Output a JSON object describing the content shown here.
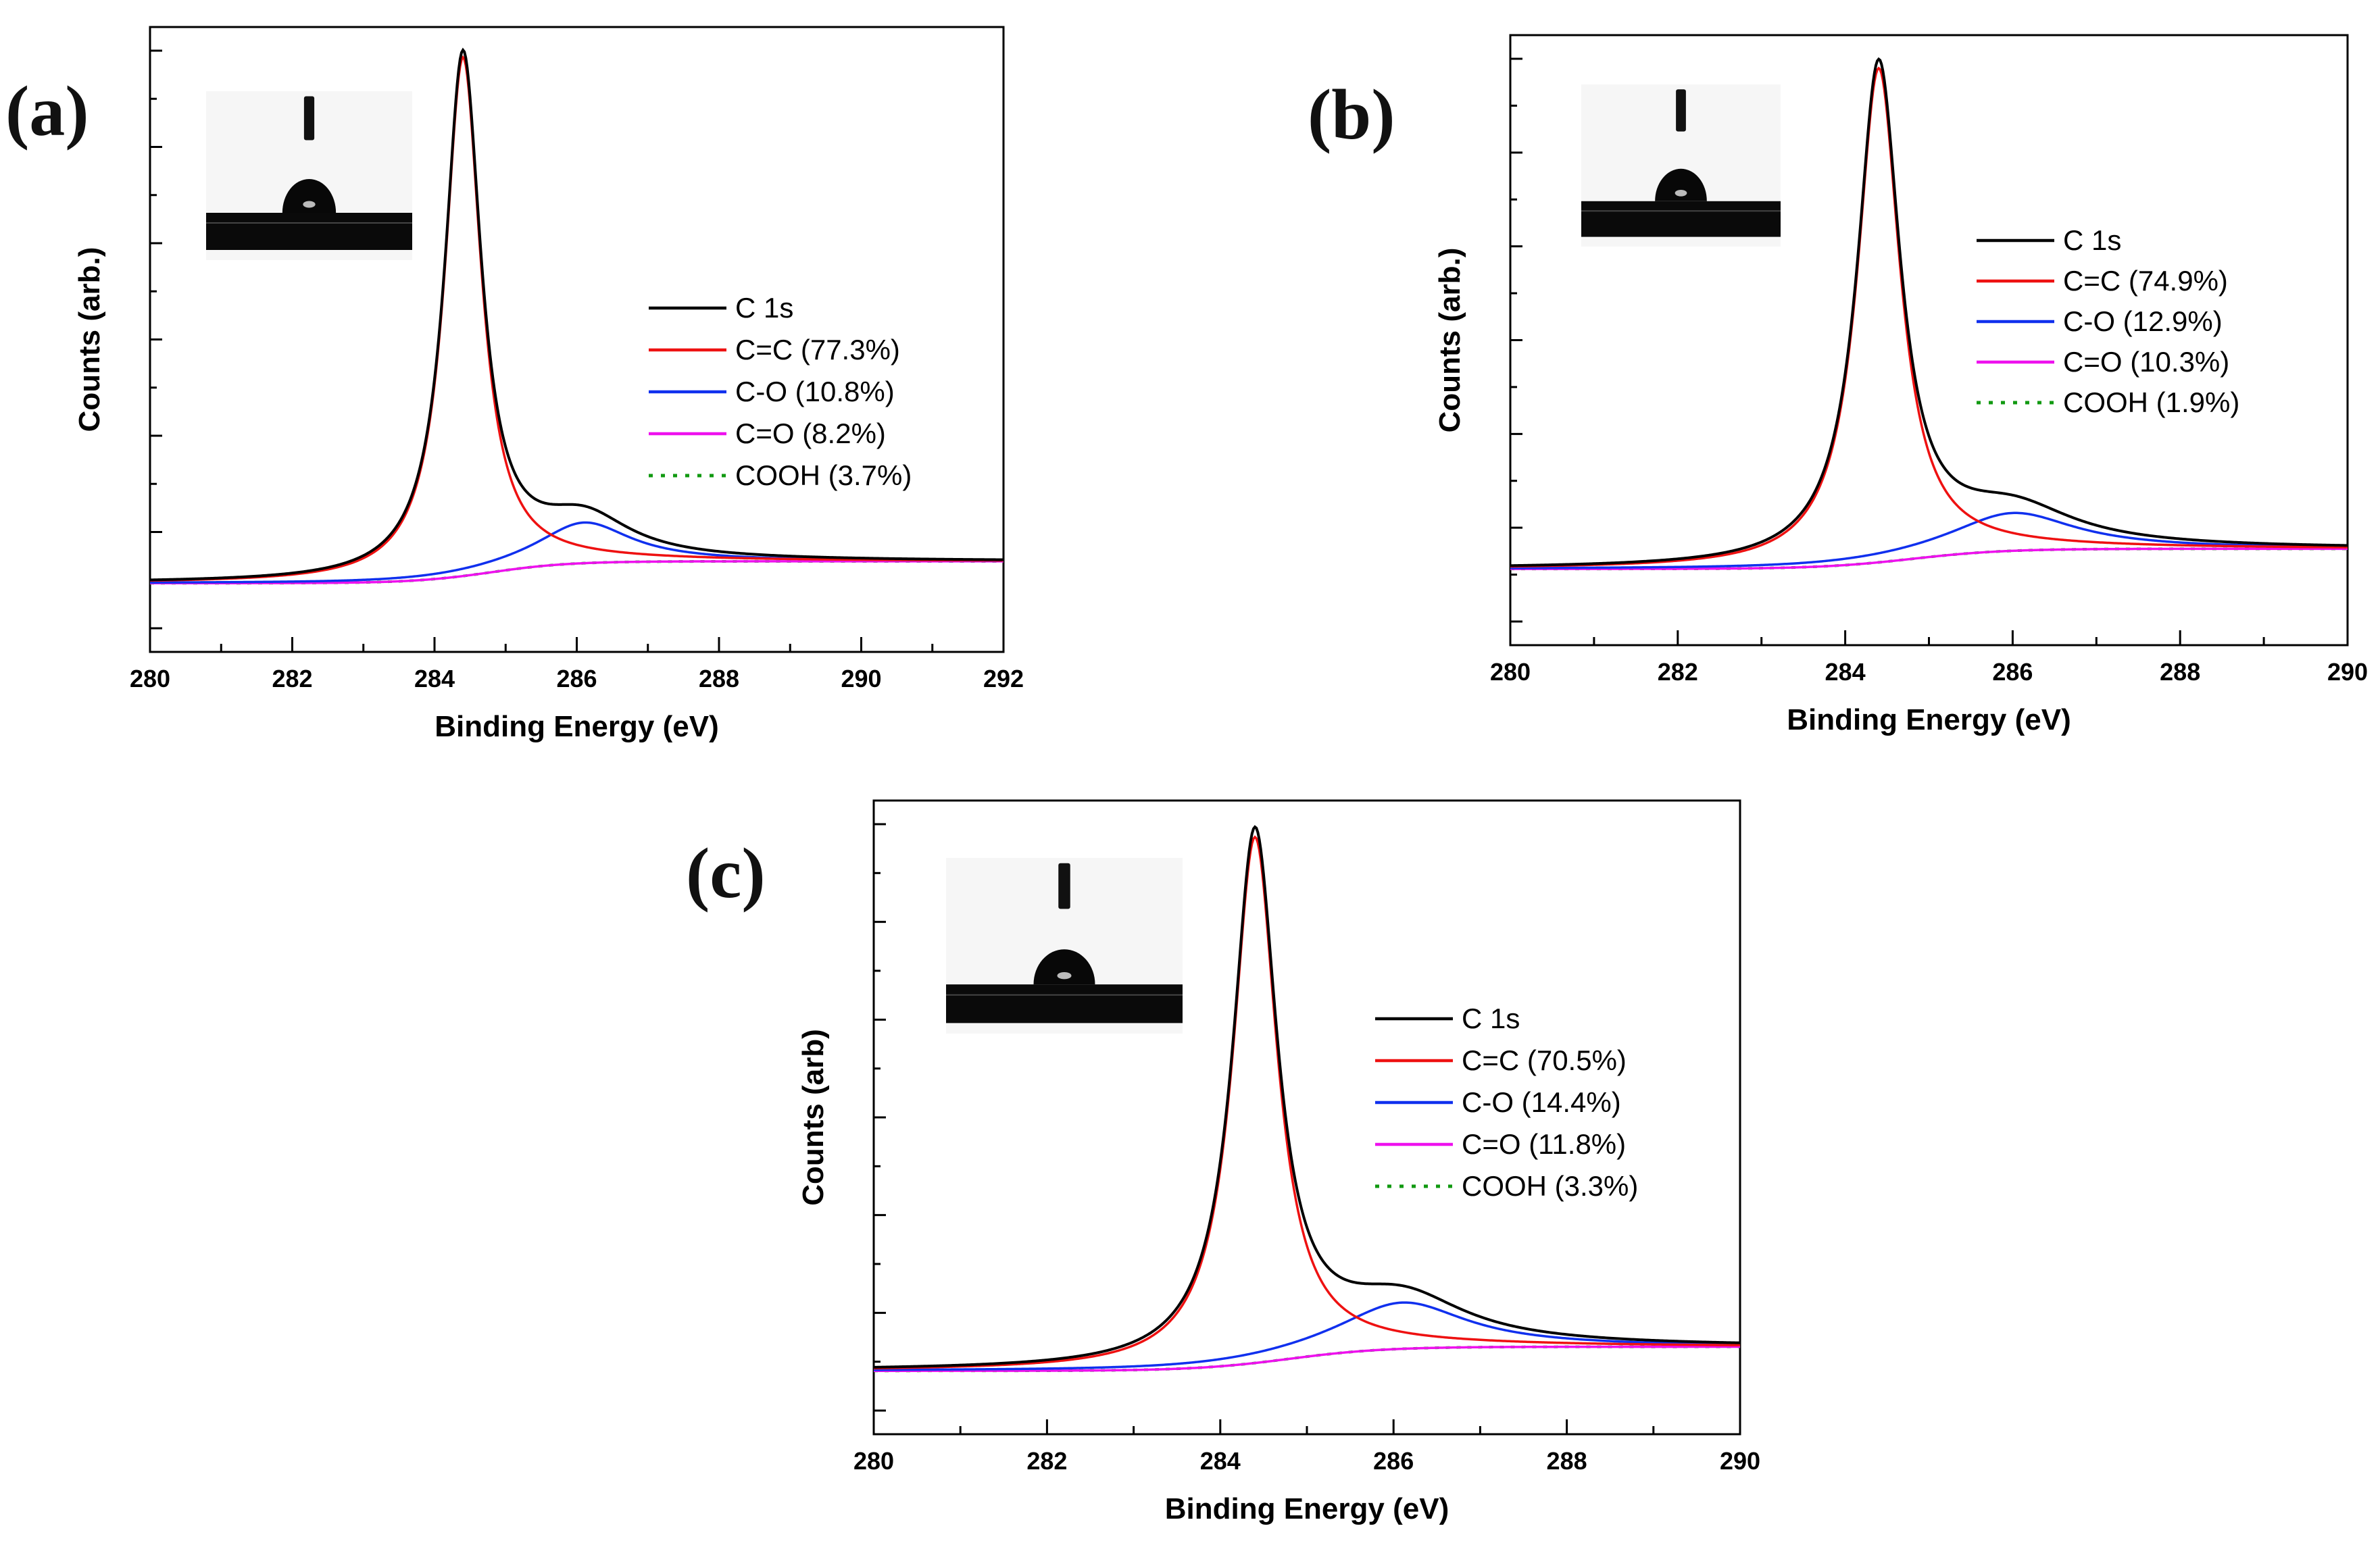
{
  "figure": {
    "colors": {
      "c1s": "#000000",
      "cc": "#ee1111",
      "co": "#1030ee",
      "cdo": "#ee11ee",
      "cooh": "#119911"
    }
  },
  "chart_data": [
    {
      "id": "a",
      "type": "line",
      "panel_label": "(a)",
      "xlabel": "Binding Energy (eV)",
      "ylabel": "Counts (arb.)",
      "xlim": [
        280,
        292
      ],
      "ylim": [
        0,
        1
      ],
      "x_ticks": [
        "280",
        "282",
        "284",
        "286",
        "288",
        "290",
        "292"
      ],
      "y_ticks_shown": false,
      "series": [
        {
          "key": "c1s",
          "name": "C 1s",
          "style": "solid",
          "color": "#000000"
        },
        {
          "key": "cc",
          "name": "C=C (77.3%)",
          "style": "solid",
          "color": "#ee1111"
        },
        {
          "key": "co",
          "name": "C-O (10.8%)",
          "style": "solid",
          "color": "#1030ee"
        },
        {
          "key": "cdo",
          "name": "C=O (8.2%)",
          "style": "solid",
          "color": "#ee11ee"
        },
        {
          "key": "cooh",
          "name": "COOH (3.7%)",
          "style": "dotted",
          "color": "#119911"
        }
      ],
      "components": {
        "baseline_left": 0.11,
        "baseline_right": 0.145,
        "cc_center": 284.4,
        "cc_amp": 0.83,
        "cc_fwhm": 0.62,
        "co_center": 286.1,
        "co_amp": 0.065,
        "co_fwhm": 1.6
      },
      "peak_x": 284.4
    },
    {
      "id": "b",
      "type": "line",
      "panel_label": "(b)",
      "xlabel": "Binding Energy (eV)",
      "ylabel": "Counts (arb.)",
      "xlim": [
        280,
        290
      ],
      "ylim": [
        0,
        1
      ],
      "x_ticks": [
        "280",
        "282",
        "284",
        "286",
        "288",
        "290"
      ],
      "y_ticks_shown": false,
      "series": [
        {
          "key": "c1s",
          "name": "C 1s",
          "style": "solid",
          "color": "#000000"
        },
        {
          "key": "cc",
          "name": "C=C (74.9%)",
          "style": "solid",
          "color": "#ee1111"
        },
        {
          "key": "co",
          "name": "C-O (12.9%)",
          "style": "solid",
          "color": "#1030ee"
        },
        {
          "key": "cdo",
          "name": "C=O (10.3%)",
          "style": "solid",
          "color": "#ee11ee"
        },
        {
          "key": "cooh",
          "name": "COOH (1.9%)",
          "style": "dotted",
          "color": "#119911"
        }
      ],
      "components": {
        "baseline_left": 0.125,
        "baseline_right": 0.158,
        "cc_center": 284.4,
        "cc_amp": 0.81,
        "cc_fwhm": 0.62,
        "co_center": 286.0,
        "co_amp": 0.062,
        "co_fwhm": 1.8
      },
      "peak_x": 284.4
    },
    {
      "id": "c",
      "type": "line",
      "panel_label": "(c)",
      "xlabel": "Binding Energy (eV)",
      "ylabel": "Counts (arb)",
      "xlim": [
        280,
        290
      ],
      "ylim": [
        0,
        1
      ],
      "x_ticks": [
        "280",
        "282",
        "284",
        "286",
        "288",
        "290"
      ],
      "y_ticks_shown": false,
      "series": [
        {
          "key": "c1s",
          "name": "C 1s",
          "style": "solid",
          "color": "#000000"
        },
        {
          "key": "cc",
          "name": "C=C (70.5%)",
          "style": "solid",
          "color": "#ee1111"
        },
        {
          "key": "co",
          "name": "C-O (14.4%)",
          "style": "solid",
          "color": "#1030ee"
        },
        {
          "key": "cdo",
          "name": "C=O (11.8%)",
          "style": "solid",
          "color": "#ee11ee"
        },
        {
          "key": "cooh",
          "name": "COOH (3.3%)",
          "style": "dotted",
          "color": "#119911"
        }
      ],
      "components": {
        "baseline_left": 0.1,
        "baseline_right": 0.138,
        "cc_center": 284.4,
        "cc_amp": 0.83,
        "cc_fwhm": 0.62,
        "co_center": 286.1,
        "co_amp": 0.073,
        "co_fwhm": 1.8
      },
      "peak_x": 284.4
    }
  ]
}
